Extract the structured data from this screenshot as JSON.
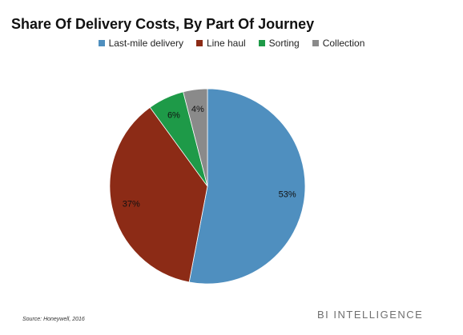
{
  "chart_data": {
    "type": "pie",
    "title": "Share Of Delivery Costs, By Part Of Journey",
    "slices": [
      {
        "label": "Last-mile delivery",
        "value": 53,
        "display": "53%",
        "color": "#4f8fbf"
      },
      {
        "label": "Line haul",
        "value": 37,
        "display": "37%",
        "color": "#8c2b16"
      },
      {
        "label": "Sorting",
        "value": 6,
        "display": "6%",
        "color": "#1e9a48"
      },
      {
        "label": "Collection",
        "value": 4,
        "display": "4%",
        "color": "#8a8a8a"
      }
    ],
    "legend_position": "top",
    "start": "top, clockwise"
  },
  "footer": {
    "source": "Source: Honeywell, 2016",
    "brand": "BI INTELLIGENCE"
  }
}
